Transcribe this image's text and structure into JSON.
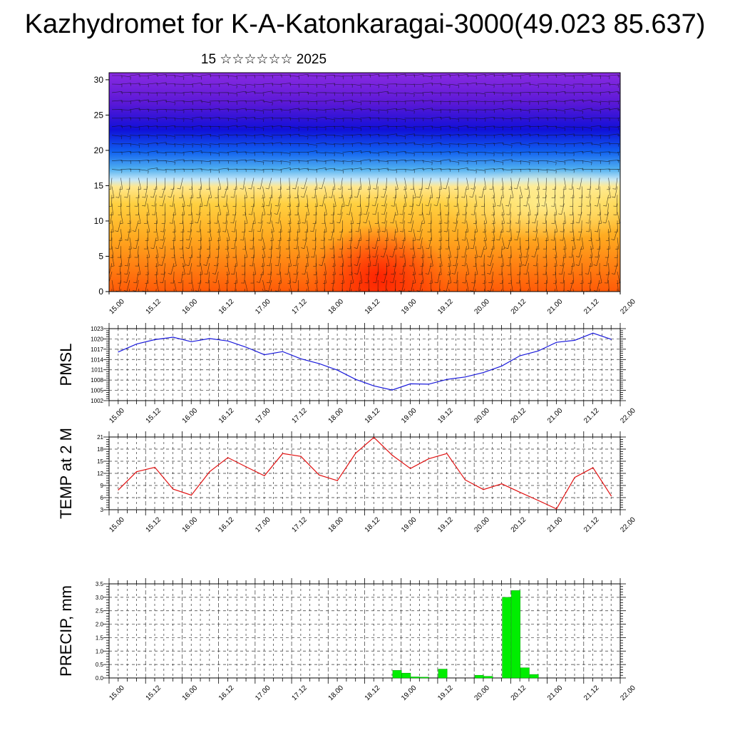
{
  "title": "Kazhydromet for K-A-Katonkaragai-3000(49.023 85.637)",
  "subtitle": "15 ☆☆☆☆☆☆ 2025",
  "time_labels": [
    "15.00",
    "15.12",
    "16.00",
    "16.12",
    "17.00",
    "17.12",
    "18.00",
    "18.12",
    "19.00",
    "19.12",
    "20.00",
    "20.12",
    "21.00",
    "21.12",
    "22.00"
  ],
  "colors": {
    "pmsl_line": "#1a1adc",
    "temp_line": "#e01010",
    "precip_bar": "#00ee00",
    "grid": "#333333"
  },
  "chart_data": [
    {
      "type": "heatmap",
      "name": "cross-section",
      "ylabel": "",
      "ylim": [
        0,
        31
      ],
      "yticks": [
        0,
        5,
        10,
        15,
        20,
        25,
        30
      ],
      "x_range": [
        0,
        14
      ],
      "colormap": "cold purple/blue aloft to warm orange/red near the surface, with overlaid wind barbs",
      "surface_warmest_near": "18.00-18.12"
    },
    {
      "type": "line",
      "name": "pmsl",
      "ylabel": "PMSL",
      "ylim": [
        1002,
        1023
      ],
      "yticks": [
        1002,
        1005,
        1008,
        1011,
        1014,
        1017,
        1020,
        1023
      ],
      "x": [
        0,
        0.5,
        1,
        1.5,
        2,
        2.5,
        3,
        3.5,
        4,
        4.5,
        5,
        5.5,
        6,
        6.5,
        7,
        7.5,
        8,
        8.5,
        9,
        9.5,
        10,
        10.5,
        11,
        11.5,
        12,
        12.5,
        13,
        13.5
      ],
      "values": [
        1016.2,
        1018.5,
        1019.8,
        1020.5,
        1019.2,
        1020.1,
        1019.4,
        1017.6,
        1015.4,
        1016.3,
        1014.2,
        1012.8,
        1010.9,
        1008.2,
        1006.3,
        1005.1,
        1006.9,
        1006.8,
        1008.2,
        1008.9,
        1010.2,
        1012.1,
        1015.1,
        1016.5,
        1019.0,
        1019.6,
        1021.7,
        1019.9
      ]
    },
    {
      "type": "line",
      "name": "temp",
      "ylabel": "TEMP at 2 M",
      "ylim": [
        3,
        21
      ],
      "yticks": [
        3,
        6,
        9,
        12,
        15,
        18,
        21
      ],
      "x": [
        0,
        0.5,
        1,
        1.5,
        2,
        2.5,
        3,
        3.5,
        4,
        4.5,
        5,
        5.5,
        6,
        6.5,
        7,
        7.5,
        8,
        8.5,
        9,
        9.5,
        10,
        10.5,
        11,
        11.5,
        12,
        12.5,
        13,
        13.5
      ],
      "values": [
        7.9,
        12.4,
        13.5,
        8.1,
        6.6,
        12.4,
        15.9,
        13.6,
        11.4,
        16.9,
        16.2,
        11.6,
        10.2,
        17.0,
        20.9,
        16.5,
        13.2,
        15.6,
        16.9,
        10.4,
        8.0,
        9.4,
        7.3,
        5.3,
        3.2,
        11.0,
        13.4,
        6.4
      ]
    },
    {
      "type": "bar",
      "name": "precip",
      "ylabel": "PRECIP, mm",
      "ylim": [
        0,
        3.5
      ],
      "yticks": [
        0.0,
        0.5,
        1.0,
        1.5,
        2.0,
        2.5,
        3.0,
        3.5
      ],
      "bars": [
        {
          "x": 7.75,
          "value": 0.28
        },
        {
          "x": 8.0,
          "value": 0.18
        },
        {
          "x": 8.25,
          "value": 0.04
        },
        {
          "x": 8.5,
          "value": 0.03
        },
        {
          "x": 9.0,
          "value": 0.33
        },
        {
          "x": 10.0,
          "value": 0.1
        },
        {
          "x": 10.25,
          "value": 0.06
        },
        {
          "x": 10.75,
          "value": 3.0
        },
        {
          "x": 11.0,
          "value": 3.25
        },
        {
          "x": 11.25,
          "value": 0.38
        },
        {
          "x": 11.5,
          "value": 0.13
        }
      ]
    }
  ]
}
